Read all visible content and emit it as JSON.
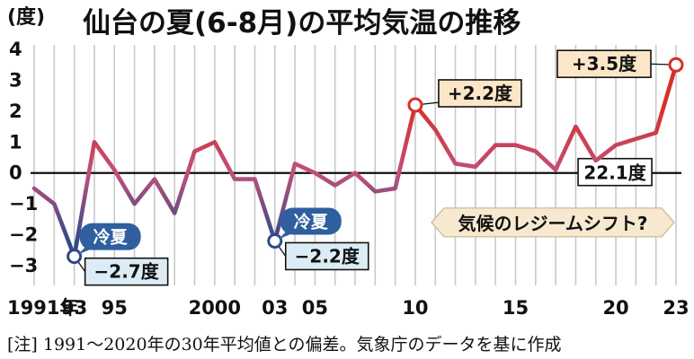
{
  "chart_data": {
    "type": "line",
    "title": "仙台の夏(6-8月)の平均気温の推移",
    "y_unit": "(度)",
    "ylim": [
      -3.5,
      4
    ],
    "yticks": [
      4,
      3,
      2,
      1,
      0,
      -1,
      -2,
      -3
    ],
    "x_tick_labels": [
      {
        "year": 1991,
        "label": "1991年"
      },
      {
        "year": 1993,
        "label": "93"
      },
      {
        "year": 1995,
        "label": "95"
      },
      {
        "year": 2000,
        "label": "2000"
      },
      {
        "year": 2003,
        "label": "03"
      },
      {
        "year": 2005,
        "label": "05"
      },
      {
        "year": 2010,
        "label": "10"
      },
      {
        "year": 2015,
        "label": "15"
      },
      {
        "year": 2020,
        "label": "20"
      },
      {
        "year": 2023,
        "label": "23"
      }
    ],
    "x": [
      1991,
      1992,
      1993,
      1994,
      1995,
      1996,
      1997,
      1998,
      1999,
      2000,
      2001,
      2002,
      2003,
      2004,
      2005,
      2006,
      2007,
      2008,
      2009,
      2010,
      2011,
      2012,
      2013,
      2014,
      2015,
      2016,
      2017,
      2018,
      2019,
      2020,
      2021,
      2022,
      2023
    ],
    "values": [
      -0.5,
      -1.0,
      -2.7,
      1.0,
      0.1,
      -1.0,
      -0.2,
      -1.3,
      0.7,
      1.0,
      -0.2,
      -0.2,
      -2.2,
      0.3,
      0.0,
      -0.4,
      0.0,
      -0.6,
      -0.5,
      2.2,
      1.4,
      0.3,
      0.2,
      0.9,
      0.9,
      0.7,
      0.1,
      1.5,
      0.4,
      0.9,
      1.1,
      1.3,
      3.5
    ],
    "baseline_label": "22.1度",
    "annotations": [
      {
        "year": 1993,
        "label": "−2.7度",
        "bubble": "冷夏"
      },
      {
        "year": 2003,
        "label": "−2.2度",
        "bubble": "冷夏"
      },
      {
        "year": 2010,
        "label": "+2.2度"
      },
      {
        "year": 2023,
        "label": "+3.5度"
      }
    ],
    "callout": "気候のレジームシフト?",
    "colors": {
      "cold": "#2f4a8a",
      "warm": "#d6302a",
      "label_box": "#fbe6c8",
      "cold_box": "#dcecf6",
      "bubble": "#2f5f9e",
      "callout_bg": "#f7e9cf"
    }
  },
  "footnote": "[注] 1991〜2020年の30年平均値との偏差。気象庁のデータを基に作成"
}
